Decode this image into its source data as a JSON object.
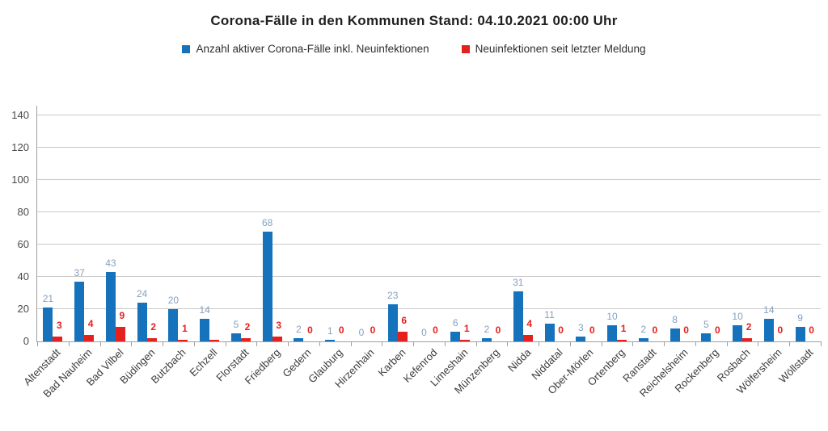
{
  "page": {
    "background": "#ffffff"
  },
  "chart_data": {
    "type": "bar",
    "title": "Corona-Fälle in den Kommunen Stand: 04.10.2021 00:00 Uhr",
    "categories": [
      "Altenstadt",
      "Bad Nauheim",
      "Bad Vilbel",
      "Büdingen",
      "Butzbach",
      "Echzell",
      "Florstadt",
      "Friedberg",
      "Gedern",
      "Glauburg",
      "Hirzenhain",
      "Karben",
      "Kefenrod",
      "Limeshain",
      "Münzenberg",
      "Nidda",
      "Niddatal",
      "Ober-Mörlen",
      "Ortenberg",
      "Ranstadt",
      "Reichelsheim",
      "Rockenberg",
      "Rosbach",
      "Wölfersheim",
      "Wöllstadt"
    ],
    "series": [
      {
        "name": "Anzahl aktiver Corona-Fälle inkl. Neuinfektionen",
        "color": "#1673bb",
        "label_color": "#84a1bf",
        "values": [
          21,
          37,
          43,
          24,
          20,
          14,
          5,
          68,
          2,
          1,
          0,
          23,
          0,
          6,
          2,
          31,
          11,
          3,
          10,
          2,
          8,
          5,
          10,
          14,
          9
        ]
      },
      {
        "name": "Neuinfektionen seit letzter Meldung",
        "color": "#e6201d",
        "label_color": "#e6201d",
        "values": [
          3,
          4,
          9,
          2,
          1,
          0,
          2,
          3,
          0,
          0,
          0,
          6,
          0,
          1,
          0,
          4,
          0,
          0,
          1,
          0,
          0,
          0,
          2,
          0,
          0
        ],
        "hidden_label_indexes": [
          5
        ],
        "flat_zero_marker_indexes": [
          5
        ]
      }
    ],
    "xlabel": "",
    "ylabel": "",
    "ylim": [
      0,
      140
    ],
    "yticks": [
      0,
      20,
      40,
      60,
      80,
      100,
      120,
      140
    ],
    "grid": true,
    "legend_position": "top"
  }
}
